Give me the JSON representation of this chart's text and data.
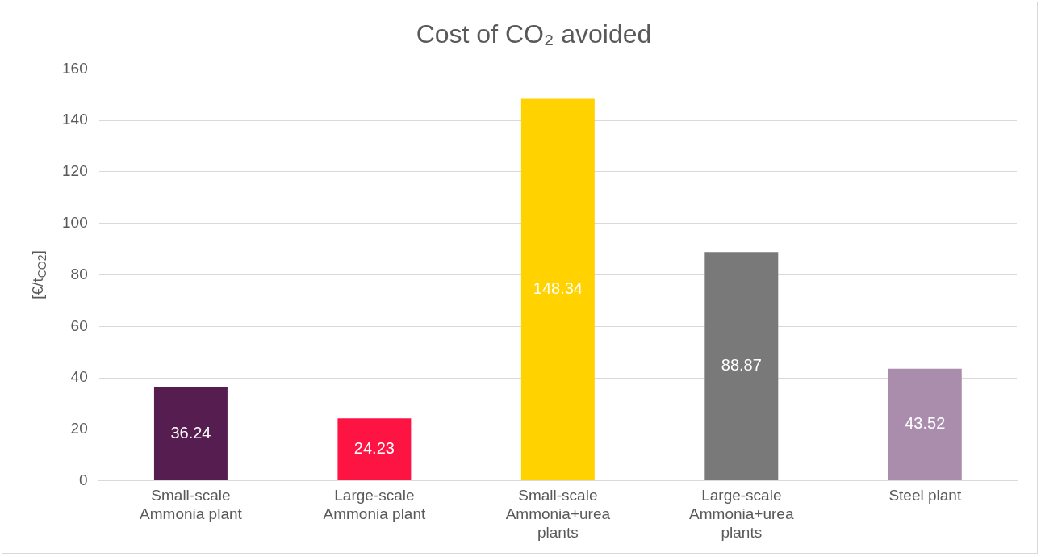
{
  "chart_data": {
    "type": "bar",
    "title": "Cost of CO₂ avoided",
    "ylabel": "[€/t$_{CO2}$]",
    "categories": [
      "Small-scale Ammonia plant",
      "Large-scale Ammonia plant",
      "Small-scale Ammonia+urea plants",
      "Large-scale Ammonia+urea plants",
      "Steel plant"
    ],
    "values": [
      36.24,
      24.23,
      148.34,
      88.87,
      43.52
    ],
    "colors": [
      "#561d50",
      "#fe1443",
      "#ffd200",
      "#797979",
      "#aa8dad"
    ],
    "ylim": [
      0,
      160
    ],
    "yticks": [
      0,
      20,
      40,
      60,
      80,
      100,
      120,
      140,
      160
    ],
    "grid": "y",
    "data_labels": true,
    "legend": false
  }
}
